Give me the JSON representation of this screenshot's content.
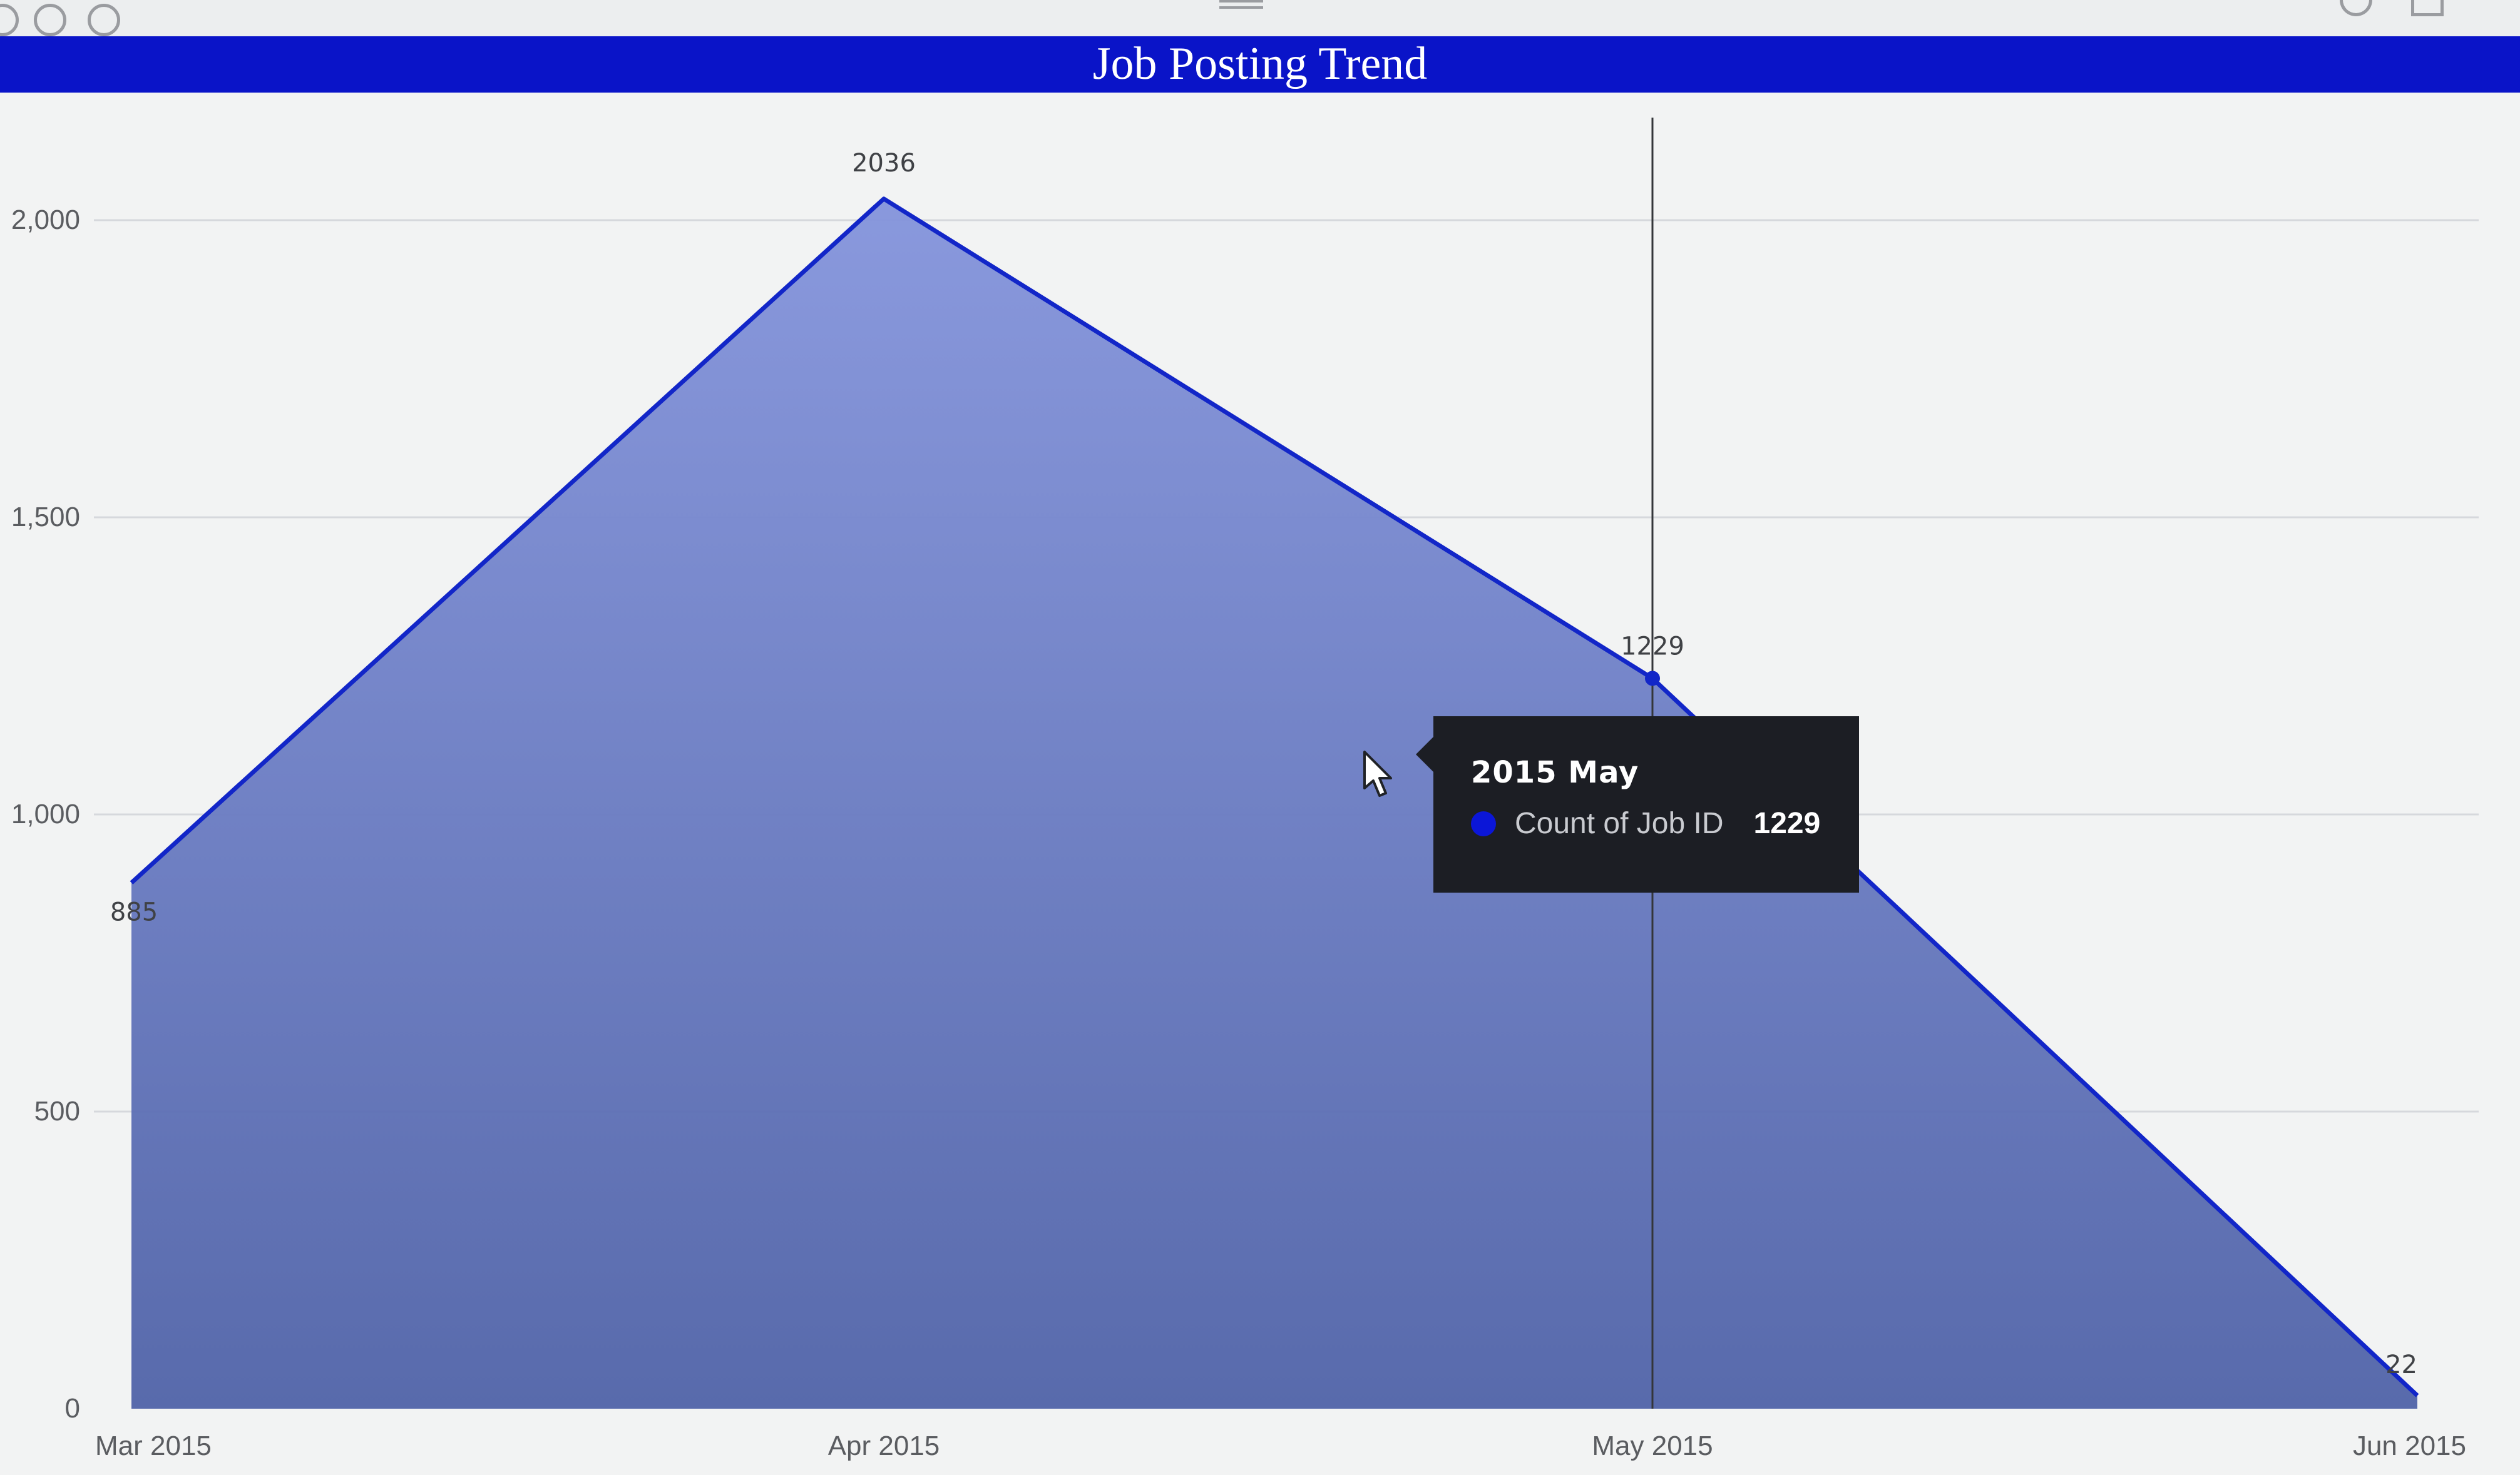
{
  "colors": {
    "title_bar": "#0a14c8",
    "series_line": "#1226c8",
    "area_fill": "#6a7ed2",
    "tooltip_bg": "#1c1e24",
    "tooltip_dot": "#0b16d8"
  },
  "toolbar": {
    "left_icons": [
      "back-icon",
      "undo-icon",
      "reset-icon"
    ],
    "grip_icon": "drag-handle-icon",
    "right_icons": [
      "download-icon",
      "focus-mode-icon"
    ]
  },
  "chart_data": {
    "type": "area",
    "title": "Job Posting Trend",
    "categories": [
      "Mar 2015",
      "Apr 2015",
      "May 2015",
      "Jun 2015"
    ],
    "series": [
      {
        "name": "Count of Job ID",
        "values": [
          885,
          2036,
          1229,
          22
        ]
      }
    ],
    "data_labels": [
      "885",
      "2036",
      "1229",
      "22"
    ],
    "y_ticks": [
      {
        "value": 0,
        "label": "0"
      },
      {
        "value": 500,
        "label": "500"
      },
      {
        "value": 1000,
        "label": "1,000"
      },
      {
        "value": 1500,
        "label": "1,500"
      },
      {
        "value": 2000,
        "label": "2,000"
      }
    ],
    "ylim": [
      0,
      2200
    ],
    "grid": true,
    "hover_index": 2
  },
  "tooltip": {
    "title": "2015 May",
    "series_name": "Count of Job ID",
    "value": "1229"
  }
}
